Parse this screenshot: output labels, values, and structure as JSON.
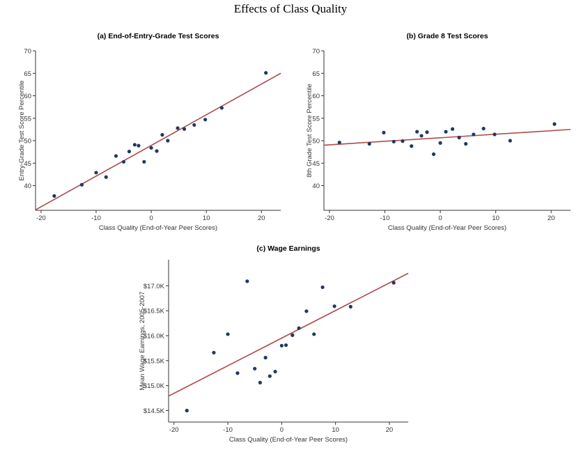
{
  "page": {
    "title": "Effects of Class Quality"
  },
  "colors": {
    "points": "#1f3a5f",
    "fit_line": "#b04a4a",
    "axis": "#333333"
  },
  "chart_data": [
    {
      "id": "a",
      "type": "scatter",
      "title": "(a) End-of-Entry-Grade Test Scores",
      "xlabel": "Class Quality (End-of-Year Peer Scores)",
      "ylabel": "Entry-Grade Test Score Percentile",
      "xlim": [
        -21,
        23.5
      ],
      "ylim": [
        34.5,
        70
      ],
      "xticks": [
        -20,
        -10,
        0,
        10,
        20
      ],
      "xtick_labels": [
        "-20",
        "-10",
        "0",
        "10",
        "20"
      ],
      "yticks": [
        40,
        45,
        50,
        55,
        60,
        65,
        70
      ],
      "ytick_labels": [
        "40",
        "45",
        "50",
        "55",
        "60",
        "65",
        "70"
      ],
      "fit_line": {
        "x": [
          -21,
          23.5
        ],
        "y": [
          34.6,
          65.0
        ]
      },
      "points": {
        "x": [
          -17.6,
          -12.6,
          -10,
          -8.2,
          -6.4,
          -5,
          -4,
          -3,
          -2.3,
          -1.3,
          0,
          1,
          2,
          3,
          4.8,
          6,
          7.8,
          9.8,
          12.8,
          20.8
        ],
        "y": [
          37.7,
          40.2,
          42.9,
          41.9,
          46.6,
          45.3,
          47.6,
          49.1,
          48.9,
          45.3,
          48.4,
          47.7,
          51.3,
          50.0,
          52.8,
          52.6,
          53.5,
          54.7,
          57.3,
          65.1
        ]
      }
    },
    {
      "id": "b",
      "type": "scatter",
      "title": "(b) Grade 8 Test Scores",
      "xlabel": "Class Quality (End-of-Year Peer Scores)",
      "ylabel": "8th Grade Test Score Percentile",
      "xlim": [
        -21,
        23.5
      ],
      "ylim": [
        34.5,
        70
      ],
      "xticks": [
        -20,
        -10,
        0,
        10,
        20
      ],
      "xtick_labels": [
        "-20",
        "-10",
        "0",
        "10",
        "20"
      ],
      "yticks": [
        40,
        45,
        50,
        55,
        60,
        65,
        70
      ],
      "ytick_labels": [
        "40",
        "45",
        "50",
        "55",
        "60",
        "65",
        "70"
      ],
      "fit_line": {
        "x": [
          -21,
          23.5
        ],
        "y": [
          49.0,
          52.5
        ]
      },
      "points": {
        "x": [
          -18.2,
          -12.8,
          -10.2,
          -8.4,
          -6.8,
          -5.2,
          -4.2,
          -3.4,
          -2.4,
          -1.2,
          0,
          1,
          2.2,
          3.4,
          4.6,
          6,
          7.8,
          9.8,
          12.6,
          20.6
        ],
        "y": [
          49.6,
          49.3,
          51.8,
          49.8,
          49.9,
          48.8,
          52.0,
          51.1,
          51.9,
          47.0,
          49.5,
          52.0,
          52.6,
          50.7,
          49.3,
          51.4,
          52.7,
          51.4,
          50.0,
          53.7
        ]
      }
    },
    {
      "id": "c",
      "type": "scatter",
      "title": "(c) Wage Earnings",
      "xlabel": "Class Quality (End-of-Year Peer Scores)",
      "ylabel": "Mean Wage Earnings, 2005-2007",
      "xlim": [
        -21,
        23.5
      ],
      "ylim": [
        14.27,
        17.52
      ],
      "xticks": [
        -20,
        -10,
        0,
        10,
        20
      ],
      "xtick_labels": [
        "-20",
        "-10",
        "0",
        "10",
        "20"
      ],
      "yticks": [
        14.5,
        15.0,
        15.5,
        16.0,
        16.5,
        17.0
      ],
      "ytick_labels": [
        "$14.5K",
        "$15.0K",
        "$15.5K",
        "$16.0K",
        "$16.5K",
        "$17.0K"
      ],
      "fit_line": {
        "x": [
          -21,
          23.5
        ],
        "y": [
          14.79,
          17.25
        ]
      },
      "points": {
        "x": [
          -17.6,
          -12.6,
          -10,
          -8.2,
          -6.4,
          -5,
          -4,
          -3,
          -2.2,
          -1.2,
          0,
          0.8,
          2,
          3.2,
          4.6,
          6,
          7.6,
          9.8,
          12.8,
          20.8
        ],
        "y": [
          14.5,
          15.66,
          16.03,
          15.25,
          17.09,
          15.34,
          15.06,
          15.56,
          15.19,
          15.28,
          15.8,
          15.81,
          16.01,
          16.15,
          16.49,
          16.03,
          16.97,
          16.59,
          16.58,
          17.06
        ]
      }
    }
  ]
}
